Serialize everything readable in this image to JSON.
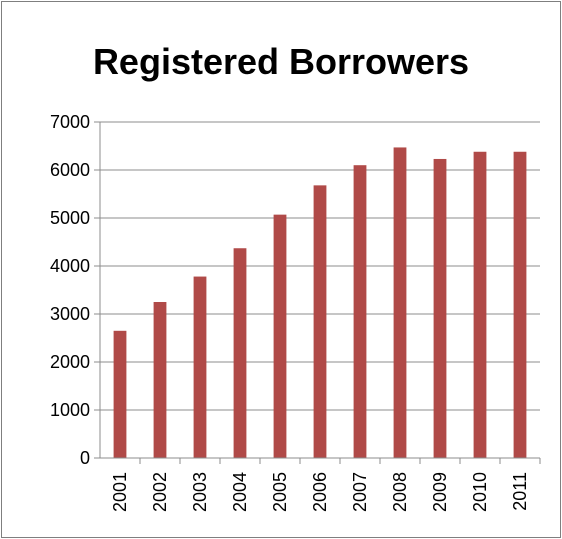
{
  "chart_data": {
    "type": "bar",
    "title": "Registered Borrowers",
    "xlabel": "",
    "ylabel": "",
    "categories": [
      "2001",
      "2002",
      "2003",
      "2004",
      "2005",
      "2006",
      "2007",
      "2008",
      "2009",
      "2010",
      "2011"
    ],
    "values": [
      2650,
      3250,
      3780,
      4370,
      5070,
      5680,
      6100,
      6470,
      6230,
      6380,
      6380
    ],
    "ylim": [
      0,
      7000
    ],
    "yticks": [
      0,
      1000,
      2000,
      3000,
      4000,
      5000,
      6000,
      7000
    ],
    "grid": true,
    "legend": "none",
    "colors": {
      "bar": "#b04a48",
      "grid": "#8c8c8c",
      "axis": "#8c8c8c",
      "frame": "#7f7f7f"
    }
  }
}
